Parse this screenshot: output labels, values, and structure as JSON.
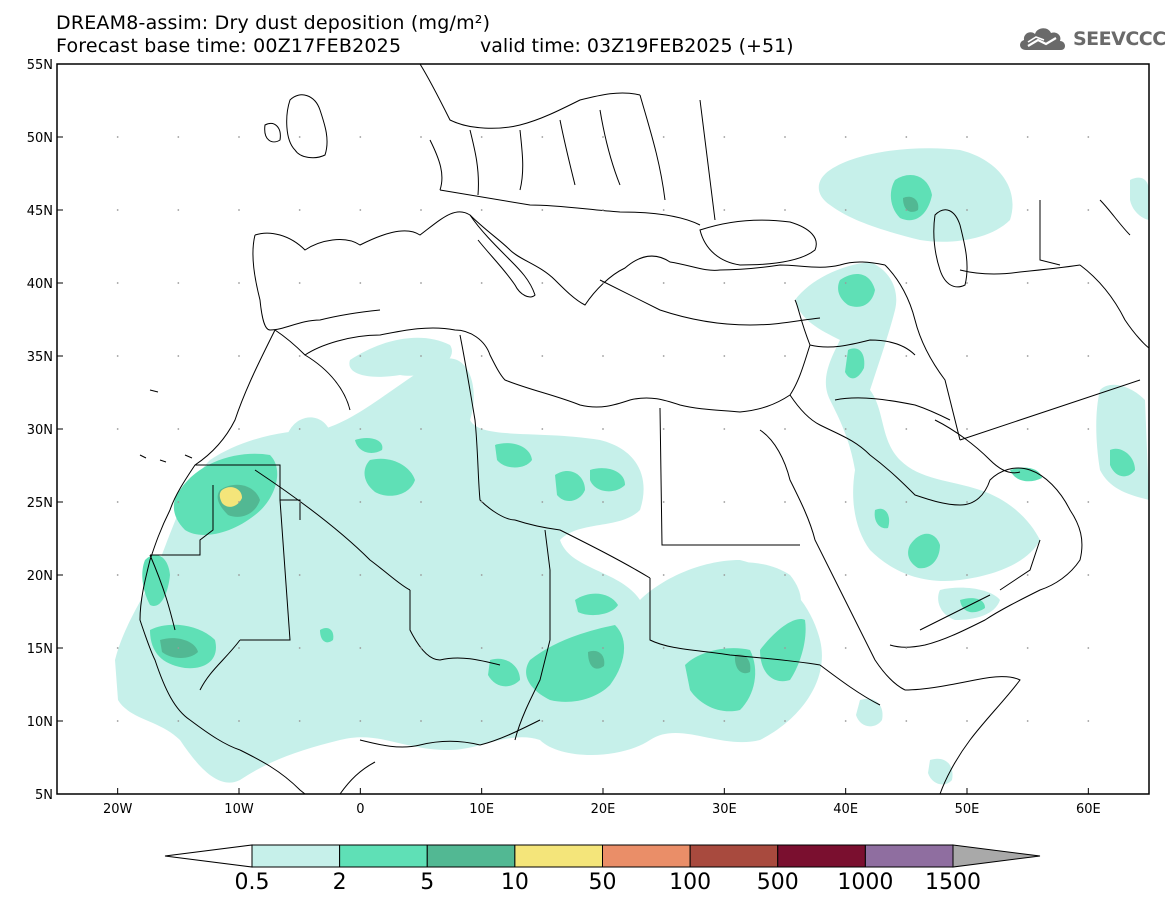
{
  "header": {
    "title_line1": "DREAM8-assim: Dry dust deposition (mg/m²)",
    "title_line2": "Forecast base time: 00Z17FEB2025",
    "valid_time": "valid time: 03Z19FEB2025 (+51)",
    "logo_text": "SEEVCCC",
    "logo_icon": "cloud-icon"
  },
  "map": {
    "projection": "lat-lon",
    "lon_range": [
      -25,
      65
    ],
    "lat_range": [
      5,
      55
    ],
    "lat_labels": [
      "55N",
      "50N",
      "45N",
      "40N",
      "35N",
      "30N",
      "25N",
      "20N",
      "15N",
      "10N",
      "5N"
    ],
    "lon_labels": [
      "20W",
      "10W",
      "0",
      "10E",
      "20E",
      "30E",
      "40E",
      "50E",
      "60E"
    ]
  },
  "legend": {
    "labels": [
      "0.5",
      "2",
      "5",
      "10",
      "50",
      "100",
      "500",
      "1000",
      "1500"
    ],
    "colors": [
      "#ffffff",
      "#c6f0ea",
      "#5fe0b6",
      "#52b893",
      "#f4e57a",
      "#ea8e68",
      "#a84a3e",
      "#7a0f2f",
      "#8f6ea0",
      "#a9a9a9"
    ]
  }
}
